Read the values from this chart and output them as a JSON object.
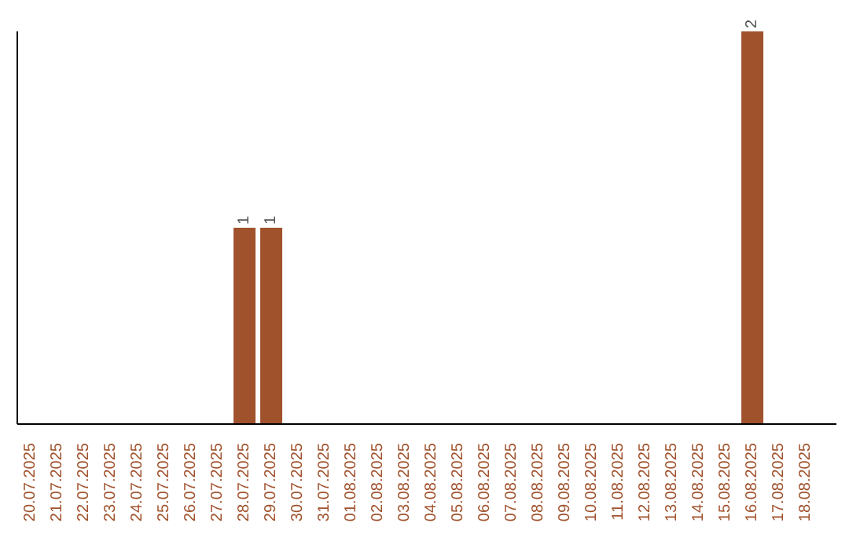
{
  "chart_data": {
    "type": "bar",
    "categories": [
      "20.07.2025",
      "21.07.2025",
      "22.07.2025",
      "23.07.2025",
      "24.07.2025",
      "25.07.2025",
      "26.07.2025",
      "27.07.2025",
      "28.07.2025",
      "29.07.2025",
      "30.07.2025",
      "31.07.2025",
      "01.08.2025",
      "02.08.2025",
      "03.08.2025",
      "04.08.2025",
      "05.08.2025",
      "06.08.2025",
      "07.08.2025",
      "08.08.2025",
      "09.08.2025",
      "10.08.2025",
      "11.08.2025",
      "12.08.2025",
      "13.08.2025",
      "14.08.2025",
      "15.08.2025",
      "16.08.2025",
      "17.08.2025",
      "18.08.2025"
    ],
    "values": [
      0,
      0,
      0,
      0,
      0,
      0,
      0,
      0,
      1,
      1,
      0,
      0,
      0,
      0,
      0,
      0,
      0,
      0,
      0,
      0,
      0,
      0,
      0,
      0,
      0,
      0,
      0,
      2,
      0,
      0
    ],
    "value_labels": [
      null,
      null,
      null,
      null,
      null,
      null,
      null,
      null,
      "1",
      "1",
      null,
      null,
      null,
      null,
      null,
      null,
      null,
      null,
      null,
      null,
      null,
      null,
      null,
      null,
      null,
      null,
      null,
      "2",
      null,
      null
    ],
    "color": "#a0522d"
  }
}
